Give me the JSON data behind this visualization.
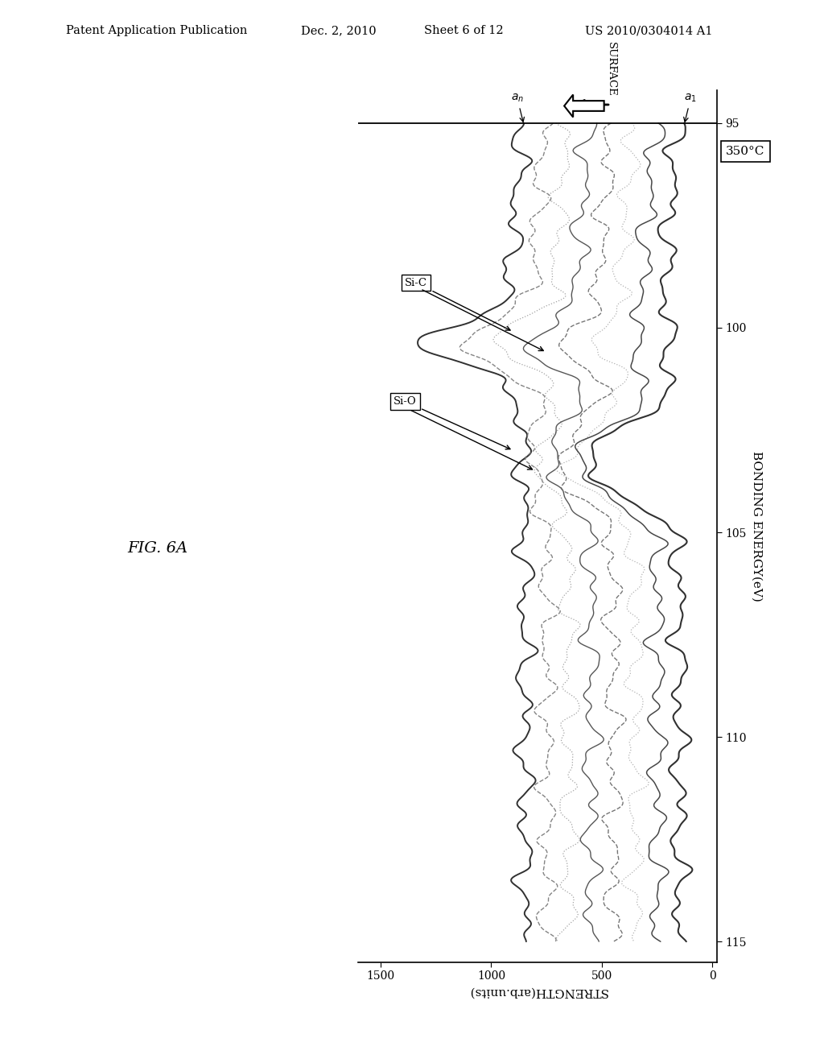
{
  "title_header": "Patent Application Publication",
  "title_date": "Dec. 2, 2010",
  "title_sheet": "Sheet 6 of 12",
  "title_patent": "US 2010/0304014 A1",
  "fig_label": "FIG. 6A",
  "temperature_label": "350°C",
  "xlabel_bottom": "STRENGTH(arb.units)",
  "ylabel_right": "BONDING ENERGY(eV)",
  "energy_min": 95,
  "energy_max": 115,
  "strength_min": 0,
  "strength_max": 1500,
  "n_curves": 8,
  "bg_color": "#ffffff"
}
